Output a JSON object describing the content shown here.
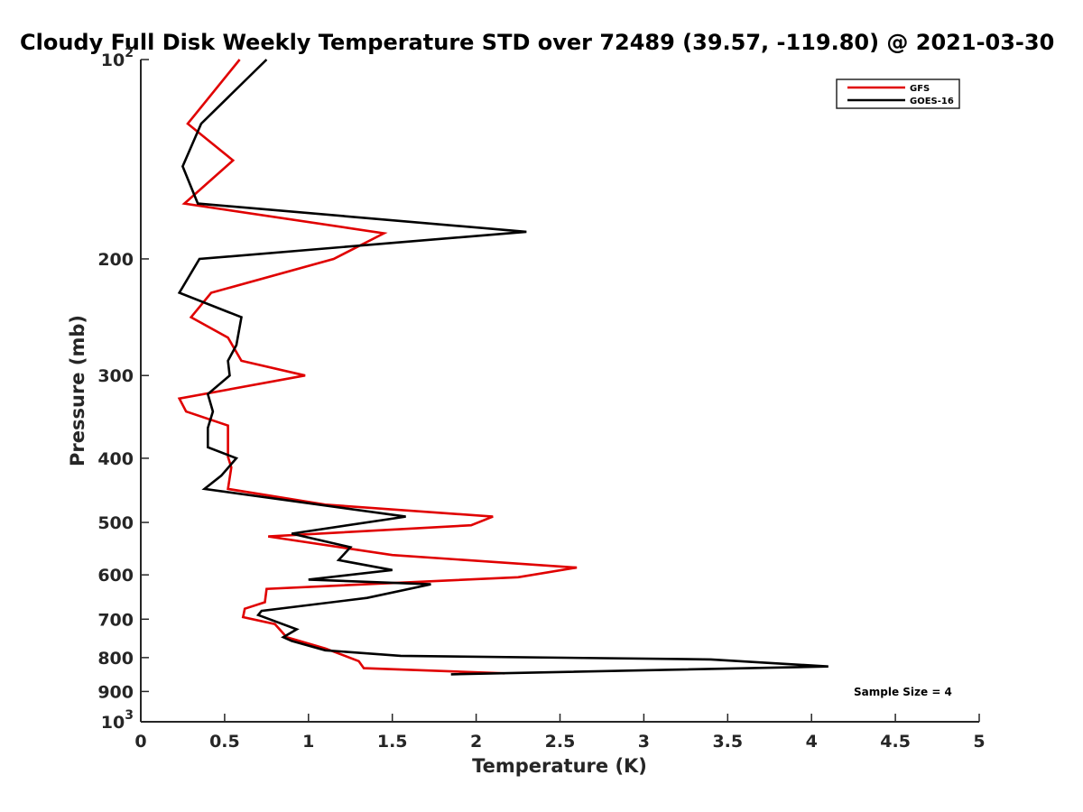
{
  "chart_data": {
    "type": "line",
    "title": "Cloudy Full Disk Weekly Temperature STD over 72489 (39.57, -119.80) @ 2021-03-30",
    "xlabel": "Temperature (K)",
    "ylabel": "Pressure (mb)",
    "xlim": [
      0,
      5
    ],
    "ylim": [
      100,
      1000
    ],
    "y_scale": "log",
    "y_reversed": true,
    "grid": false,
    "legend_position": "top-right",
    "x_ticks": [
      "0",
      "0.5",
      "1",
      "1.5",
      "2",
      "2.5",
      "3",
      "3.5",
      "4",
      "4.5",
      "5"
    ],
    "x_tick_values": [
      0,
      0.5,
      1,
      1.5,
      2,
      2.5,
      3,
      3.5,
      4,
      4.5,
      5
    ],
    "y_ticks": [
      {
        "value": 100,
        "base": "10",
        "exp": "2"
      },
      {
        "value": 200,
        "label": "200"
      },
      {
        "value": 300,
        "label": "300"
      },
      {
        "value": 400,
        "label": "400"
      },
      {
        "value": 500,
        "label": "500"
      },
      {
        "value": 600,
        "label": "600"
      },
      {
        "value": 700,
        "label": "700"
      },
      {
        "value": 800,
        "label": "800"
      },
      {
        "value": 900,
        "label": "900"
      },
      {
        "value": 1000,
        "base": "10",
        "exp": "3"
      }
    ],
    "annotation": "Sample Size = 4",
    "series": [
      {
        "name": "GFS",
        "color": "#e00000",
        "points": [
          [
            0.59,
            100
          ],
          [
            0.28,
            125
          ],
          [
            0.55,
            142
          ],
          [
            0.26,
            165
          ],
          [
            1.45,
            183
          ],
          [
            1.15,
            200
          ],
          [
            0.42,
            225
          ],
          [
            0.3,
            245
          ],
          [
            0.52,
            263
          ],
          [
            0.6,
            285
          ],
          [
            0.98,
            300
          ],
          [
            0.23,
            325
          ],
          [
            0.27,
            340
          ],
          [
            0.52,
            357
          ],
          [
            0.52,
            398
          ],
          [
            0.54,
            413
          ],
          [
            0.52,
            445
          ],
          [
            1.1,
            470
          ],
          [
            2.1,
            490
          ],
          [
            1.97,
            505
          ],
          [
            0.76,
            525
          ],
          [
            1.5,
            560
          ],
          [
            2.6,
            585
          ],
          [
            2.25,
            605
          ],
          [
            0.75,
            630
          ],
          [
            0.74,
            660
          ],
          [
            0.62,
            675
          ],
          [
            0.61,
            695
          ],
          [
            0.8,
            712
          ],
          [
            0.87,
            745
          ],
          [
            1.1,
            775
          ],
          [
            1.3,
            810
          ],
          [
            1.33,
            830
          ],
          [
            2.17,
            845
          ]
        ]
      },
      {
        "name": "GOES-16",
        "color": "#000000",
        "points": [
          [
            0.75,
            100
          ],
          [
            0.36,
            125
          ],
          [
            0.25,
            145
          ],
          [
            0.34,
            165
          ],
          [
            2.3,
            182
          ],
          [
            0.35,
            200
          ],
          [
            0.23,
            225
          ],
          [
            0.6,
            245
          ],
          [
            0.57,
            270
          ],
          [
            0.52,
            285
          ],
          [
            0.53,
            300
          ],
          [
            0.4,
            320
          ],
          [
            0.43,
            340
          ],
          [
            0.4,
            360
          ],
          [
            0.4,
            385
          ],
          [
            0.57,
            400
          ],
          [
            0.48,
            425
          ],
          [
            0.38,
            445
          ],
          [
            1.58,
            490
          ],
          [
            0.9,
            520
          ],
          [
            1.25,
            545
          ],
          [
            1.18,
            570
          ],
          [
            1.5,
            590
          ],
          [
            1.0,
            610
          ],
          [
            1.73,
            620
          ],
          [
            1.35,
            650
          ],
          [
            0.72,
            680
          ],
          [
            0.7,
            690
          ],
          [
            0.93,
            725
          ],
          [
            0.85,
            745
          ],
          [
            0.9,
            755
          ],
          [
            1.1,
            780
          ],
          [
            1.55,
            795
          ],
          [
            3.4,
            805
          ],
          [
            4.1,
            825
          ],
          [
            1.85,
            848
          ]
        ]
      }
    ]
  }
}
